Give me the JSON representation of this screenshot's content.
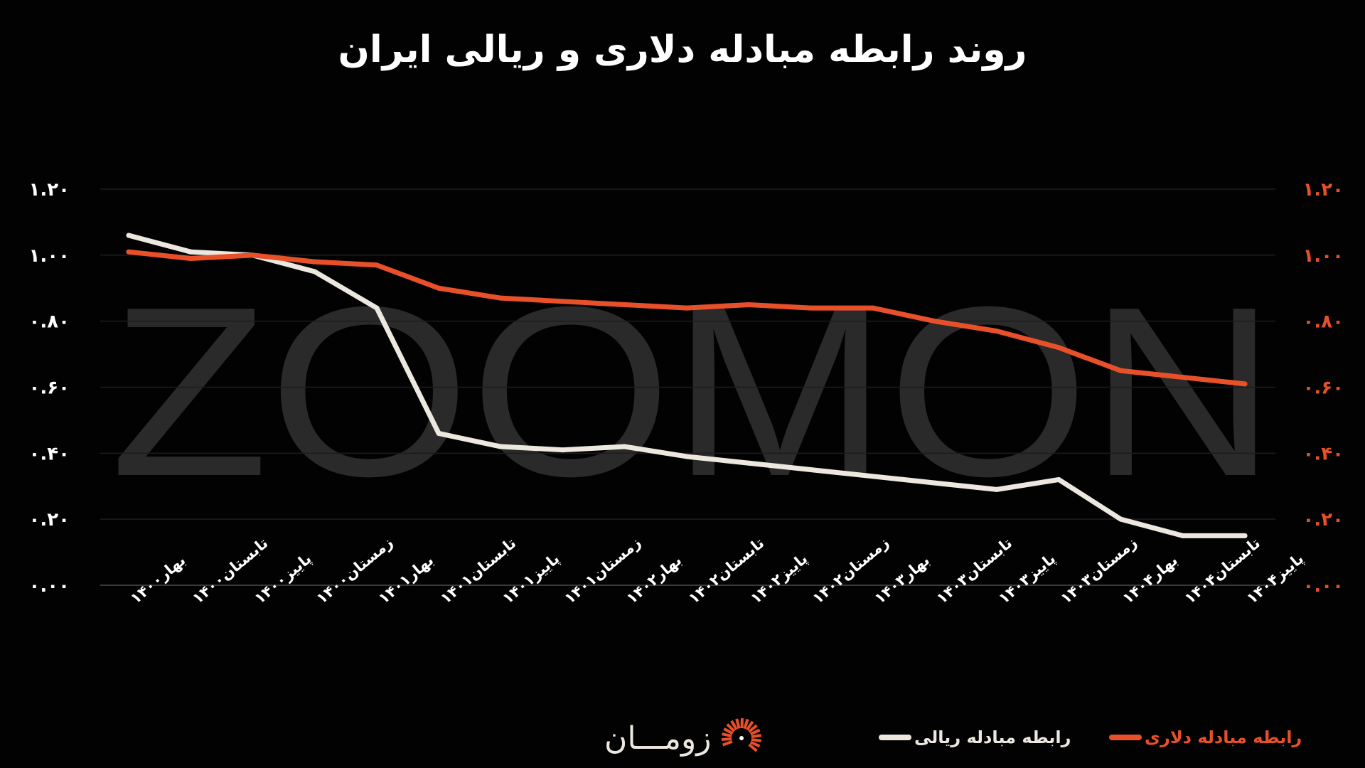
{
  "chart_data": {
    "type": "line",
    "title": "روند رابطه مبادله دلاری و ریالی ایران",
    "categories": [
      "بهار۱۴۰۰",
      "تابستان۱۴۰۰",
      "پاییز۱۴۰۰",
      "زمستان۱۴۰۰",
      "بهار۱۴۰۱",
      "تابستان۱۴۰۱",
      "پاییز۱۴۰۱",
      "زمستان۱۴۰۱",
      "بهار۱۴۰۲",
      "تابستان۱۴۰۲",
      "پاییز۱۴۰۲",
      "زمستان۱۴۰۲",
      "بهار۱۴۰۳",
      "تابستان۱۴۰۳",
      "پاییز۱۴۰۳",
      "زمستان۱۴۰۳",
      "بهار۱۴۰۴",
      "تابستان۱۴۰۴",
      "پاییز۱۴۰۴"
    ],
    "series": [
      {
        "name": "رابطه مبادله دلاری",
        "color": "#e8502a",
        "axis": "right",
        "values": [
          1.01,
          0.99,
          1.0,
          0.98,
          0.97,
          0.9,
          0.87,
          0.86,
          0.85,
          0.84,
          0.85,
          0.84,
          0.84,
          0.8,
          0.77,
          0.72,
          0.65,
          0.63,
          0.61
        ]
      },
      {
        "name": "رابطه مبادله ریالی",
        "color": "#ece8df",
        "axis": "left",
        "values": [
          1.06,
          1.01,
          1.0,
          0.95,
          0.84,
          0.46,
          0.42,
          0.41,
          0.42,
          0.39,
          0.37,
          0.35,
          0.33,
          0.31,
          0.29,
          0.32,
          0.2,
          0.15,
          0.15
        ]
      }
    ],
    "ylim": [
      0,
      1.2
    ],
    "yticks": [
      0,
      0.2,
      0.4,
      0.6,
      0.8,
      1.0,
      1.2
    ],
    "ytick_labels": [
      "۰.۰۰",
      "۰.۲۰",
      "۰.۴۰",
      "۰.۶۰",
      "۰.۸۰",
      "۱.۰۰",
      "۱.۲۰"
    ],
    "grid": true,
    "legend": "bottom",
    "left_axis_color": "#ffffff",
    "right_axis_color": "#e8502a"
  },
  "watermark": "ZOOMON",
  "logo": {
    "text": "زومـــان",
    "color": "#e8502a"
  }
}
